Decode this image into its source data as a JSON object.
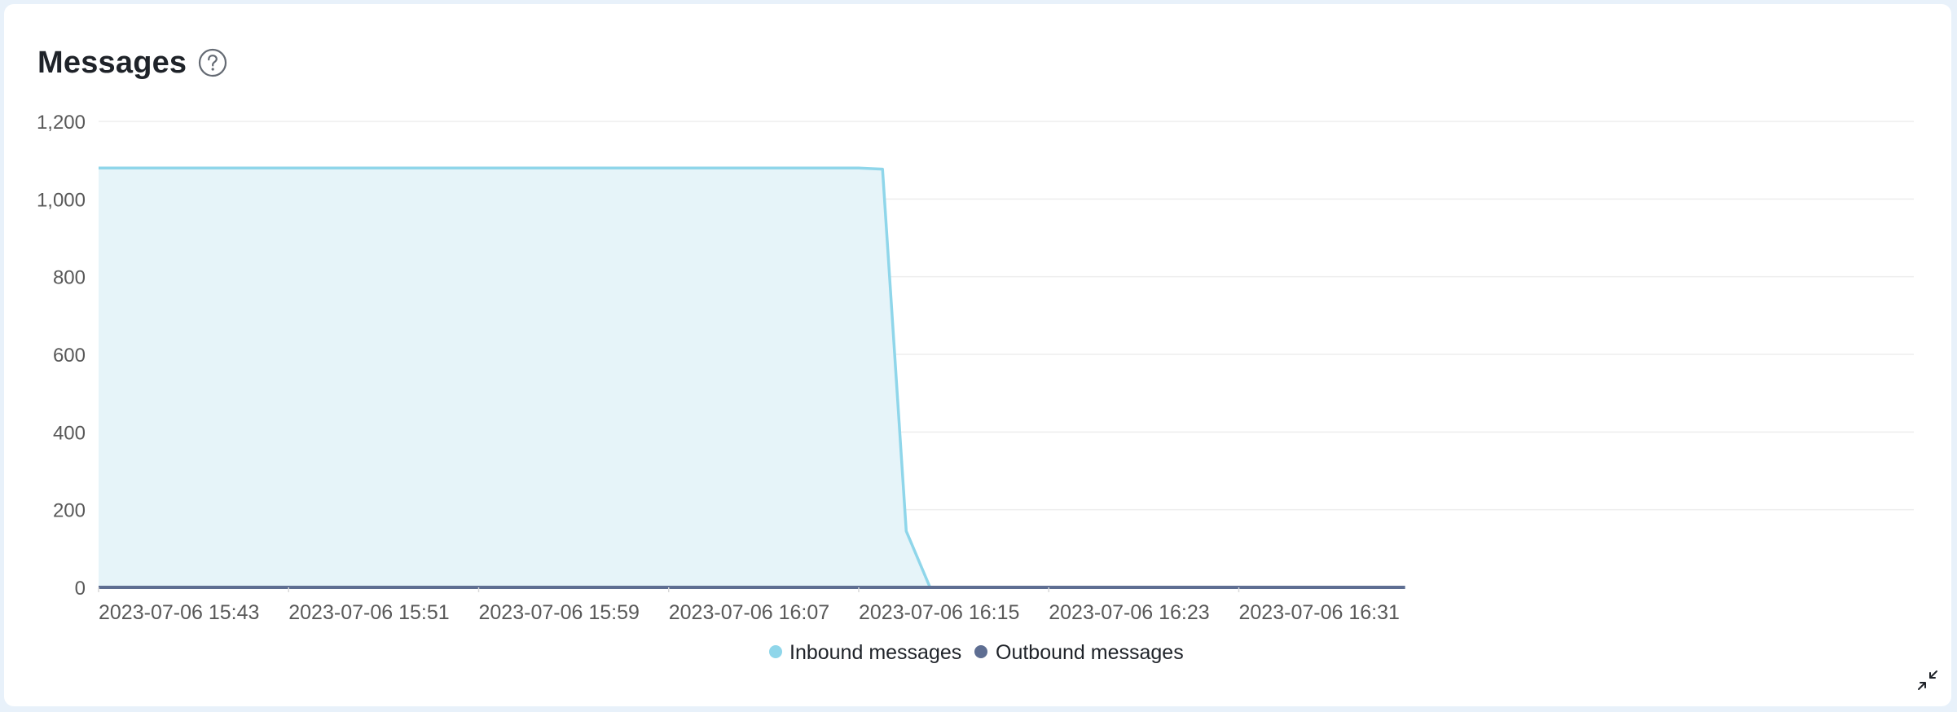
{
  "card": {
    "title": "Messages",
    "help_icon": "question-circle-icon",
    "collapse_icon": "collapse-arrows-icon"
  },
  "colors": {
    "inbound_line": "#8fd6ea",
    "inbound_fill": "#e6f4f9",
    "outbound": "#5e6e92",
    "grid": "#eeeeee"
  },
  "chart_data": {
    "type": "area",
    "title": "Messages",
    "xlabel": "",
    "ylabel": "",
    "ylim": [
      0,
      1200
    ],
    "y_ticks": [
      0,
      200,
      400,
      600,
      800,
      1000,
      1200
    ],
    "y_tick_labels": [
      "0",
      "200",
      "400",
      "600",
      "800",
      "1,000",
      "1,200"
    ],
    "x_tick_labels": [
      "2023-07-06 15:43",
      "2023-07-06 15:51",
      "2023-07-06 15:59",
      "2023-07-06 16:07",
      "2023-07-06 16:15",
      "2023-07-06 16:23",
      "2023-07-06 16:31"
    ],
    "x_start": "2023-07-06 15:43",
    "x_end": "2023-07-06 16:38",
    "grid": true,
    "legend_position": "bottom-center",
    "series": [
      {
        "name": "Inbound messages",
        "color": "#8fd6ea",
        "points": [
          [
            "2023-07-06 15:43",
            1080
          ],
          [
            "2023-07-06 16:15",
            1080
          ],
          [
            "2023-07-06 16:16",
            1077
          ],
          [
            "2023-07-06 16:17",
            145
          ],
          [
            "2023-07-06 16:18",
            0
          ],
          [
            "2023-07-06 16:38",
            0
          ]
        ]
      },
      {
        "name": "Outbound messages",
        "color": "#5e6e92",
        "points": [
          [
            "2023-07-06 15:43",
            0
          ],
          [
            "2023-07-06 16:38",
            0
          ]
        ]
      }
    ]
  }
}
